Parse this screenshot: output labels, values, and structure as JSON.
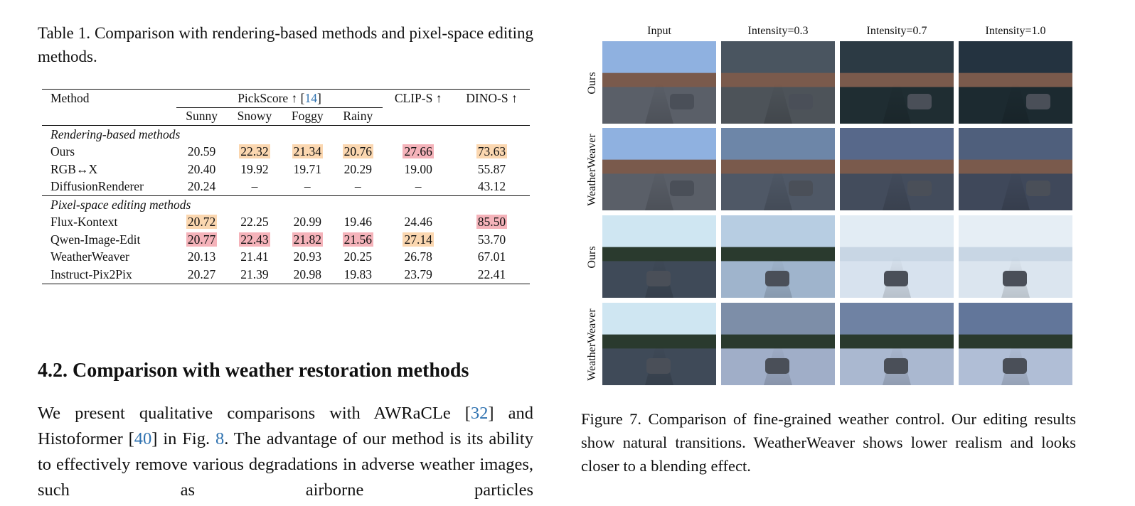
{
  "table": {
    "caption": "Table 1.  Comparison with rendering-based methods and pixel-space editing methods.",
    "headers": {
      "method": "Method",
      "pickscore": "PickScore ↑ [",
      "pickscore_ref": "14",
      "pickscore_end": "]",
      "clip": "CLIP-S ↑",
      "dino": "DINO-S ↑"
    },
    "subheaders": [
      "Sunny",
      "Snowy",
      "Foggy",
      "Rainy"
    ],
    "groups": [
      {
        "title": "Rendering-based methods",
        "rows": [
          {
            "method": "Ours",
            "values": [
              "20.59",
              "22.32",
              "21.34",
              "20.76",
              "27.66",
              "73.63"
            ],
            "hl": [
              "",
              "o",
              "o",
              "o",
              "r",
              "o"
            ]
          },
          {
            "method": "RGB↔X",
            "values": [
              "20.40",
              "19.92",
              "19.71",
              "20.29",
              "19.00",
              "55.87"
            ],
            "hl": [
              "",
              "",
              "",
              "",
              "",
              ""
            ]
          },
          {
            "method": "DiffusionRenderer",
            "values": [
              "20.24",
              "–",
              "–",
              "–",
              "–",
              "43.12"
            ],
            "hl": [
              "",
              "",
              "",
              "",
              "",
              ""
            ]
          }
        ]
      },
      {
        "title": "Pixel-space editing methods",
        "rows": [
          {
            "method": "Flux-Kontext",
            "values": [
              "20.72",
              "22.25",
              "20.99",
              "19.46",
              "24.46",
              "85.50"
            ],
            "hl": [
              "o",
              "",
              "",
              "",
              "",
              "r"
            ]
          },
          {
            "method": "Qwen-Image-Edit",
            "values": [
              "20.77",
              "22.43",
              "21.82",
              "21.56",
              "27.14",
              "53.70"
            ],
            "hl": [
              "r",
              "r",
              "r",
              "r",
              "o",
              ""
            ]
          },
          {
            "method": "WeatherWeaver",
            "values": [
              "20.13",
              "21.41",
              "20.93",
              "20.25",
              "26.78",
              "67.01"
            ],
            "hl": [
              "",
              "",
              "",
              "",
              "",
              ""
            ]
          },
          {
            "method": "Instruct-Pix2Pix",
            "values": [
              "20.27",
              "21.39",
              "20.98",
              "19.83",
              "23.79",
              "22.41"
            ],
            "hl": [
              "",
              "",
              "",
              "",
              "",
              ""
            ]
          }
        ]
      }
    ],
    "colors": {
      "best": "#f5b3ba",
      "second": "#fbd7b0"
    }
  },
  "section": {
    "heading": "4.2. Comparison with weather restoration methods",
    "p1": "We present qualitative comparisons with AWRaCLe [",
    "ref1": "32",
    "p2": "] and Histoformer [",
    "ref2": "40",
    "p3": "] in Fig. ",
    "ref3": "8",
    "p4": ".  The advantage of our method is its ability to effectively remove various degradations in adverse weather images, such as airborne particles"
  },
  "figure": {
    "columns": [
      "Input",
      "Intensity=0.3",
      "Intensity=0.7",
      "Intensity=1.0"
    ],
    "rows": [
      {
        "label": "Ours",
        "scene": "rain"
      },
      {
        "label": "WeatherWeaver",
        "scene": "rainww"
      },
      {
        "label": "Ours",
        "scene": "snow"
      },
      {
        "label": "WeatherWeaver",
        "scene": "snowww"
      }
    ],
    "caption": "Figure 7.  Comparison of fine-grained weather control. Our editing results show natural transitions. WeatherWeaver shows lower realism and looks closer to a blending effect."
  }
}
